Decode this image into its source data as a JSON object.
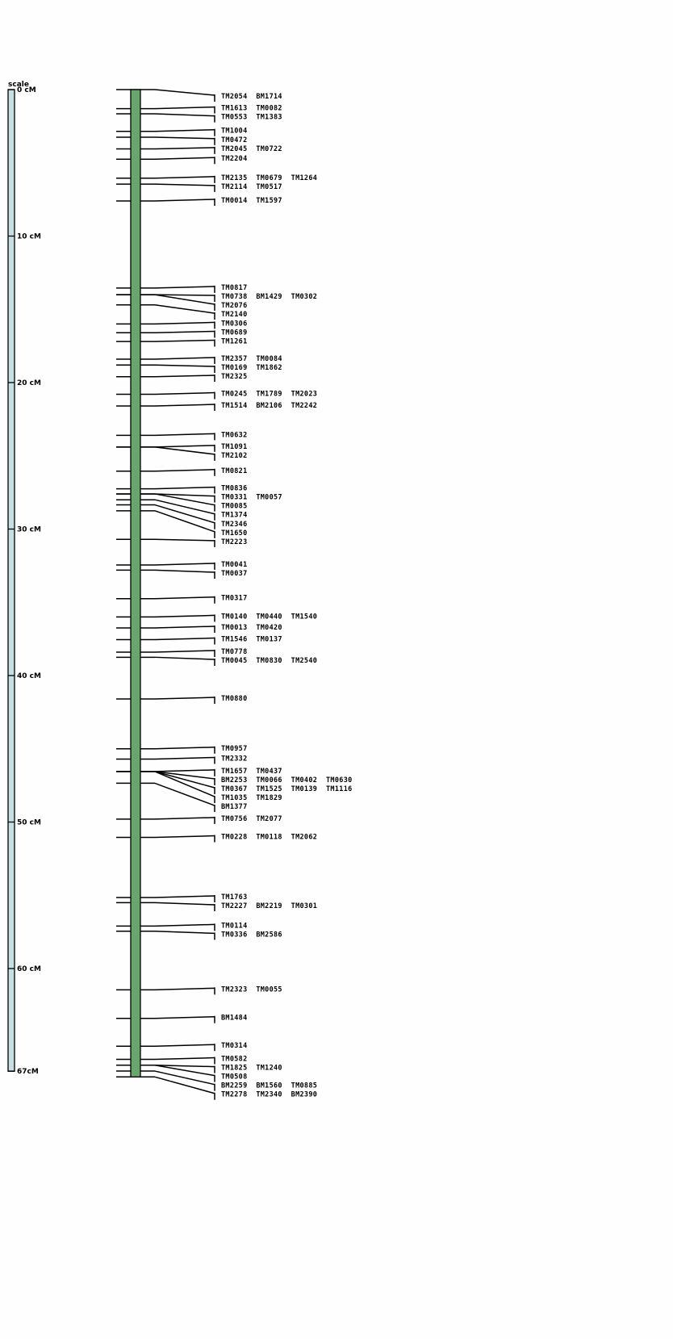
{
  "scale": {
    "title": "scale",
    "ticks": [
      {
        "cm": 0,
        "label": "0 cM"
      },
      {
        "cm": 10,
        "label": "10 cM"
      },
      {
        "cm": 20,
        "label": "20 cM"
      },
      {
        "cm": 30,
        "label": "30 cM"
      },
      {
        "cm": 40,
        "label": "40 cM"
      },
      {
        "cm": 50,
        "label": "50 cM"
      },
      {
        "cm": 60,
        "label": "60 cM"
      },
      {
        "cm": 67,
        "label": "67cM"
      }
    ],
    "max_cm": 67.4
  },
  "colors": {
    "scale_bar": "#c5dfe2",
    "chromosome": "#6aa56d",
    "line": "#000000"
  },
  "loci": [
    {
      "pos": 0.0,
      "markers": "TM2054  BM1714"
    },
    {
      "pos": 1.3,
      "markers": "TM1613  TM0082"
    },
    {
      "pos": 1.65,
      "markers": "TM0553  TM1383"
    },
    {
      "pos": 2.85,
      "markers": "TM1004"
    },
    {
      "pos": 3.25,
      "markers": "TM0472"
    },
    {
      "pos": 4.05,
      "markers": "TM2045  TM0722"
    },
    {
      "pos": 4.75,
      "markers": "TM2204"
    },
    {
      "pos": 6.05,
      "markers": "TM2135  TM0679  TM1264"
    },
    {
      "pos": 6.45,
      "markers": "TM2114  TM0517"
    },
    {
      "pos": 7.6,
      "markers": "TM0014  TM1597"
    },
    {
      "pos": 13.55,
      "markers": "TM0817"
    },
    {
      "pos": 14.0,
      "markers": "TM0738  BM1429  TM0302"
    },
    {
      "pos": 14.0,
      "markers": "TM2076"
    },
    {
      "pos": 14.7,
      "markers": "TM2140"
    },
    {
      "pos": 16.0,
      "markers": "TM0306"
    },
    {
      "pos": 16.6,
      "markers": "TM0689"
    },
    {
      "pos": 17.2,
      "markers": "TM1261"
    },
    {
      "pos": 18.4,
      "markers": "TM2357  TM0084"
    },
    {
      "pos": 18.8,
      "markers": "TM0169  TM1862"
    },
    {
      "pos": 19.6,
      "markers": "TM2325"
    },
    {
      "pos": 20.8,
      "markers": "TM0245  TM1789  TM2023"
    },
    {
      "pos": 21.6,
      "markers": "TM1514  BM2106  TM2242"
    },
    {
      "pos": 23.6,
      "markers": "TM0632"
    },
    {
      "pos": 24.4,
      "markers": "TM1091"
    },
    {
      "pos": 24.4,
      "markers": "TM2102"
    },
    {
      "pos": 26.05,
      "markers": "TM0821"
    },
    {
      "pos": 27.25,
      "markers": "TM0836"
    },
    {
      "pos": 27.6,
      "markers": "TM0331  TM0057"
    },
    {
      "pos": 27.6,
      "markers": "TM0085"
    },
    {
      "pos": 28.0,
      "markers": "TM1374"
    },
    {
      "pos": 28.35,
      "markers": "TM2346"
    },
    {
      "pos": 28.75,
      "markers": "TM1650"
    },
    {
      "pos": 30.7,
      "markers": "TM2223"
    },
    {
      "pos": 32.45,
      "markers": "TM0041"
    },
    {
      "pos": 32.8,
      "markers": "TM0037"
    },
    {
      "pos": 34.75,
      "markers": "TM0317"
    },
    {
      "pos": 36.0,
      "markers": "TM0140  TM0440  TM1540"
    },
    {
      "pos": 36.75,
      "markers": "TM0013  TM0420"
    },
    {
      "pos": 37.55,
      "markers": "TM1546  TM0137"
    },
    {
      "pos": 38.4,
      "markers": "TM0778"
    },
    {
      "pos": 38.75,
      "markers": "TM0045  TM0830  TM2540"
    },
    {
      "pos": 41.6,
      "markers": "TM0880"
    },
    {
      "pos": 45.0,
      "markers": "TM0957"
    },
    {
      "pos": 45.7,
      "markers": "TM2332"
    },
    {
      "pos": 46.55,
      "markers": "TM1657  TM0437"
    },
    {
      "pos": 46.55,
      "markers": "BM2253  TM0066  TM0402  TM0630"
    },
    {
      "pos": 46.55,
      "markers": "TM0367  TM1525  TM0139  TM1116"
    },
    {
      "pos": 46.55,
      "markers": "TM1035  TM1829"
    },
    {
      "pos": 47.35,
      "markers": "BM1377"
    },
    {
      "pos": 49.8,
      "markers": "TM0756  TM2077"
    },
    {
      "pos": 51.05,
      "markers": "TM0228  TM0118  TM2062"
    },
    {
      "pos": 55.15,
      "markers": "TM1763"
    },
    {
      "pos": 55.5,
      "markers": "TM2227  BM2219  TM0301"
    },
    {
      "pos": 57.1,
      "markers": "TM0114"
    },
    {
      "pos": 57.45,
      "markers": "TM0336  BM2586"
    },
    {
      "pos": 61.45,
      "markers": "TM2323  TM0055"
    },
    {
      "pos": 63.4,
      "markers": "BM1484"
    },
    {
      "pos": 65.3,
      "markers": "TM0314"
    },
    {
      "pos": 66.2,
      "markers": "TM0582"
    },
    {
      "pos": 66.6,
      "markers": "TM1825  TM1240"
    },
    {
      "pos": 66.6,
      "markers": "TM0508"
    },
    {
      "pos": 67.0,
      "markers": "BM2259  BM1560  TM0885"
    },
    {
      "pos": 67.4,
      "markers": "TM2278  TM2340  BM2390"
    }
  ]
}
